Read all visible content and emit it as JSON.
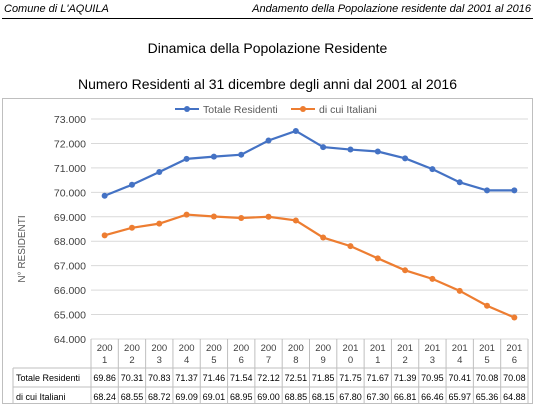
{
  "header": {
    "left": "Comune di L'AQUILA",
    "right": "Andamento della Popolazione residente dal 2001 al 2016"
  },
  "title_line1": "Dinamica della Popolazione Residente",
  "title_line2": "Numero Residenti al 31 dicembre degli anni dal 2001 al 2016",
  "chart_data": {
    "type": "line",
    "ylabel": "N° RESIDENTI",
    "ylim": [
      64000,
      73000
    ],
    "yticks": [
      "64.000",
      "65.000",
      "66.000",
      "67.000",
      "68.000",
      "69.000",
      "70.000",
      "71.000",
      "72.000",
      "73.000"
    ],
    "grid": true,
    "legend_placement": "top-center",
    "categories": [
      [
        "200",
        "1"
      ],
      [
        "200",
        "2"
      ],
      [
        "200",
        "3"
      ],
      [
        "200",
        "4"
      ],
      [
        "200",
        "5"
      ],
      [
        "200",
        "6"
      ],
      [
        "200",
        "7"
      ],
      [
        "200",
        "8"
      ],
      [
        "200",
        "9"
      ],
      [
        "201",
        "0"
      ],
      [
        "201",
        "1"
      ],
      [
        "201",
        "2"
      ],
      [
        "201",
        "3"
      ],
      [
        "201",
        "4"
      ],
      [
        "201",
        "5"
      ],
      [
        "201",
        "6"
      ]
    ],
    "series": [
      {
        "name": "Totale Residenti",
        "color": "#4472c4",
        "values": [
          69860,
          70310,
          70830,
          71370,
          71460,
          71540,
          72120,
          72510,
          71850,
          71750,
          71670,
          71390,
          70950,
          70410,
          70080,
          70080
        ],
        "table_labels": [
          "69.86",
          "70.31",
          "70.83",
          "71.37",
          "71.46",
          "71.54",
          "72.12",
          "72.51",
          "71.85",
          "71.75",
          "71.67",
          "71.39",
          "70.95",
          "70.41",
          "70.08",
          "70.08"
        ]
      },
      {
        "name": "di cui Italiani",
        "color": "#ed7d31",
        "values": [
          68240,
          68550,
          68720,
          69090,
          69010,
          68950,
          69000,
          68850,
          68150,
          67800,
          67300,
          66810,
          66460,
          65970,
          65360,
          64880
        ],
        "table_labels": [
          "68.24",
          "68.55",
          "68.72",
          "69.09",
          "69.01",
          "68.95",
          "69.00",
          "68.85",
          "68.15",
          "67.80",
          "67.30",
          "66.81",
          "66.46",
          "65.97",
          "65.36",
          "64.88"
        ]
      }
    ]
  }
}
